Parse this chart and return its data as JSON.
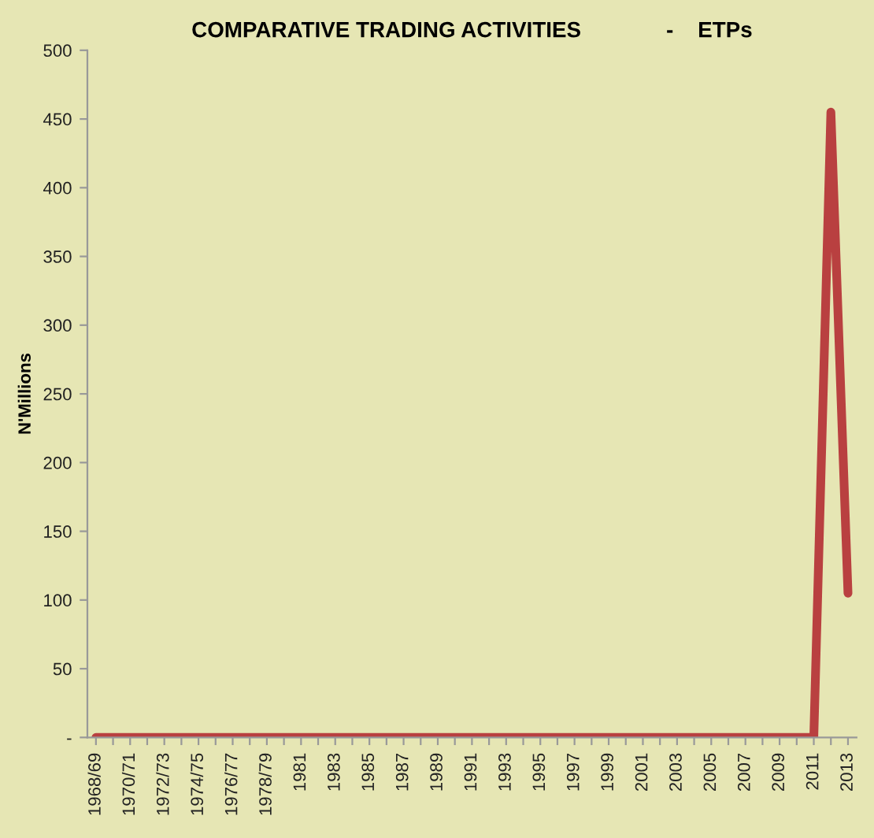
{
  "chart_data": {
    "type": "line",
    "title": "COMPARATIVE TRADING ACTIVITIES              -    ETPs",
    "ylabel": "N'Millions",
    "categories": [
      "1968/69",
      null,
      "1970/71",
      null,
      "1972/73",
      null,
      "1974/75",
      null,
      "1976/77",
      null,
      "1978/79",
      null,
      "1981",
      null,
      "1983",
      null,
      "1985",
      null,
      "1987",
      null,
      "1989",
      null,
      "1991",
      null,
      "1993",
      null,
      "1995",
      null,
      "1997",
      null,
      "1999",
      null,
      "2001",
      null,
      "2003",
      null,
      "2005",
      null,
      "2007",
      null,
      "2009",
      null,
      "2011",
      null,
      "2013"
    ],
    "series": [
      {
        "color": "#b94040",
        "values": [
          0,
          0,
          0,
          0,
          0,
          0,
          0,
          0,
          0,
          0,
          0,
          0,
          0,
          0,
          0,
          0,
          0,
          0,
          0,
          0,
          0,
          0,
          0,
          0,
          0,
          0,
          0,
          0,
          0,
          0,
          0,
          0,
          0,
          0,
          0,
          0,
          0,
          0,
          0,
          0,
          0,
          0,
          0,
          455,
          105
        ]
      }
    ],
    "ylim": [
      0,
      500
    ],
    "yticks": [
      {
        "value": 0,
        "label": "-"
      },
      50,
      100,
      150,
      200,
      250,
      300,
      350,
      400,
      450,
      500
    ],
    "grid": false,
    "legend": false,
    "marker": "none",
    "line_style": "solid"
  }
}
